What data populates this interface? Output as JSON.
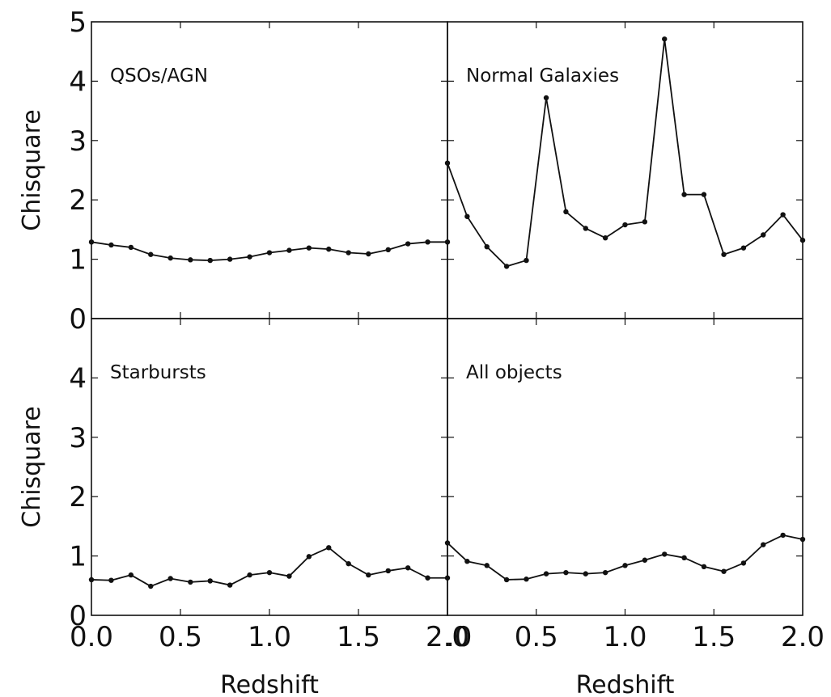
{
  "chart_data": [
    {
      "type": "line",
      "panel": "top-left",
      "label": "QSOs/AGN",
      "xlabel": "",
      "ylabel": "Chisquare",
      "xlim": [
        0.0,
        2.0
      ],
      "ylim": [
        0,
        5
      ],
      "x": [
        0.0,
        0.111,
        0.222,
        0.333,
        0.444,
        0.556,
        0.667,
        0.778,
        0.889,
        1.0,
        1.111,
        1.222,
        1.333,
        1.444,
        1.556,
        1.667,
        1.778,
        1.889,
        2.0
      ],
      "y": [
        1.29,
        1.24,
        1.2,
        1.08,
        1.02,
        0.99,
        0.98,
        1.0,
        1.04,
        1.11,
        1.15,
        1.19,
        1.17,
        1.11,
        1.09,
        1.16,
        1.26,
        1.29,
        1.29
      ],
      "yticks": [
        "0",
        "1",
        "2",
        "3",
        "4",
        "5"
      ],
      "xticks": []
    },
    {
      "type": "line",
      "panel": "top-right",
      "label": "Normal Galaxies",
      "xlabel": "",
      "ylabel": "",
      "xlim": [
        0.0,
        2.0
      ],
      "ylim": [
        0,
        5
      ],
      "x": [
        0.0,
        0.111,
        0.222,
        0.333,
        0.444,
        0.556,
        0.667,
        0.778,
        0.889,
        1.0,
        1.111,
        1.222,
        1.333,
        1.444,
        1.556,
        1.667,
        1.778,
        1.889,
        2.0
      ],
      "y": [
        2.62,
        1.72,
        1.21,
        0.88,
        0.98,
        3.72,
        1.8,
        1.52,
        1.36,
        1.58,
        1.63,
        4.71,
        2.09,
        2.09,
        1.08,
        1.19,
        1.41,
        1.75,
        1.32
      ],
      "yticks": [],
      "xticks": []
    },
    {
      "type": "line",
      "panel": "bottom-left",
      "label": "Starbursts",
      "xlabel": "Redshift",
      "ylabel": "Chisquare",
      "xlim": [
        0.0,
        2.0
      ],
      "ylim": [
        0,
        5
      ],
      "x": [
        0.0,
        0.111,
        0.222,
        0.333,
        0.444,
        0.556,
        0.667,
        0.778,
        0.889,
        1.0,
        1.111,
        1.222,
        1.333,
        1.444,
        1.556,
        1.667,
        1.778,
        1.889,
        2.0
      ],
      "y": [
        0.6,
        0.59,
        0.68,
        0.49,
        0.62,
        0.56,
        0.58,
        0.51,
        0.68,
        0.72,
        0.66,
        0.99,
        1.14,
        0.87,
        0.68,
        0.75,
        0.8,
        0.63,
        0.63
      ],
      "yticks": [
        "0",
        "1",
        "2",
        "3",
        "4"
      ],
      "xticks": [
        "0.0",
        "0.5",
        "1.0",
        "1.5",
        "2.0"
      ]
    },
    {
      "type": "line",
      "panel": "bottom-right",
      "label": "All objects",
      "xlabel": "Redshift",
      "ylabel": "",
      "xlim": [
        0.0,
        2.0
      ],
      "ylim": [
        0,
        5
      ],
      "x": [
        0.0,
        0.111,
        0.222,
        0.333,
        0.444,
        0.556,
        0.667,
        0.778,
        0.889,
        1.0,
        1.111,
        1.222,
        1.333,
        1.444,
        1.556,
        1.667,
        1.778,
        1.889,
        2.0
      ],
      "y": [
        1.22,
        0.91,
        0.84,
        0.6,
        0.61,
        0.7,
        0.72,
        0.7,
        0.72,
        0.84,
        0.93,
        1.03,
        0.97,
        0.82,
        0.74,
        0.88,
        1.19,
        1.35,
        1.28
      ],
      "yticks": [],
      "xticks": [
        ".0",
        "0.5",
        "1.0",
        "1.5",
        "2.0"
      ]
    }
  ]
}
